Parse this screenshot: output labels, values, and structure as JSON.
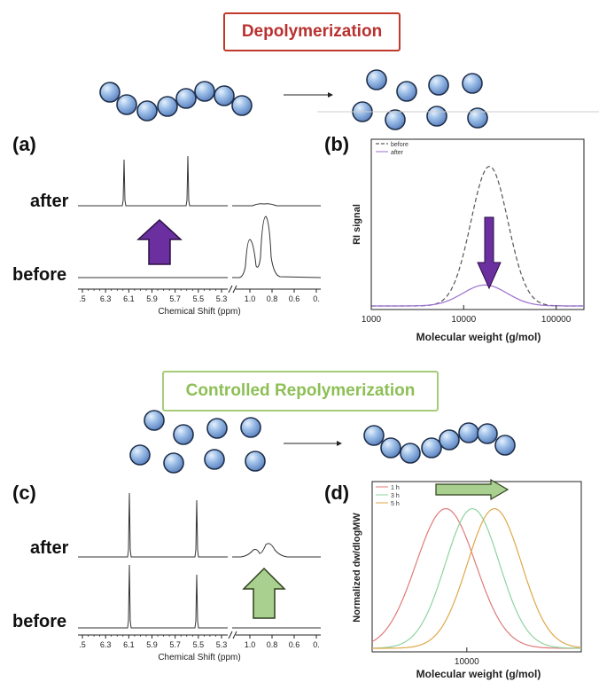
{
  "titles": {
    "depolymerization": "Depolymerization",
    "repolymerization": "Controlled Repolymerization"
  },
  "panels": {
    "a": {
      "letter": "(a)",
      "top_label": "after",
      "bottom_label": "before"
    },
    "b": {
      "letter": "(b)"
    },
    "c": {
      "letter": "(c)",
      "top_label": "after",
      "bottom_label": "before"
    },
    "d": {
      "letter": "(d)"
    }
  },
  "nmr_axis": {
    "xlabel": "Chemical Shift (ppm)",
    "left_ticks": [
      ".5",
      "6.3",
      "6.1",
      "5.9",
      "5.7",
      "5.5",
      "5.3"
    ],
    "right_ticks": [
      "1.0",
      "0.8",
      "0.6",
      "0."
    ]
  },
  "colors": {
    "bead_fill": "#8fb4e3",
    "bead_stroke": "#1f2f4a",
    "down_arrow": "#6b2fa0",
    "up_arrow": "#a9d08e",
    "before_line": "#555555",
    "after_line": "#9b6fd0",
    "series_1h": "#e07a7a",
    "series_3h": "#8fd3a0",
    "series_5h": "#e0a84a"
  },
  "chart_data": [
    {
      "id": "b",
      "type": "line",
      "title": "",
      "xlabel": "Molecular weight (g/mol)",
      "ylabel": "RI signal",
      "xscale": "log",
      "xlim": [
        1000,
        200000
      ],
      "xticks": [
        "1000",
        "10000",
        "100000"
      ],
      "legend": "top-left",
      "series": [
        {
          "name": "before",
          "style": "dashed",
          "peak_x": 19000,
          "peak_y": 1.0,
          "width_decades": 0.2
        },
        {
          "name": "after",
          "style": "solid",
          "peak_x": 17000,
          "peak_y": 0.15,
          "width_decades": 0.24
        }
      ]
    },
    {
      "id": "d",
      "type": "line",
      "title": "",
      "xlabel": "Molecular weight (g/mol)",
      "ylabel": "Normalized dw/dlogMW",
      "xscale": "log",
      "xlim": [
        2000,
        70000
      ],
      "xticks": [
        "10000"
      ],
      "legend": "top-left",
      "series": [
        {
          "name": "1 h",
          "peak_x": 7000,
          "peak_y": 1.0,
          "width_decades": 0.22
        },
        {
          "name": "3 h",
          "peak_x": 11000,
          "peak_y": 1.0,
          "width_decades": 0.2
        },
        {
          "name": "5 h",
          "peak_x": 16000,
          "peak_y": 1.0,
          "width_decades": 0.2
        }
      ]
    }
  ]
}
